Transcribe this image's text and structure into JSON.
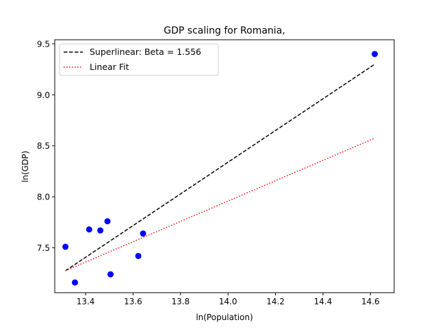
{
  "chart_data": {
    "type": "scatter",
    "title": "GDP scaling for Romania,",
    "xlabel": "ln(Population)",
    "ylabel": "ln(GDP)",
    "xlim": [
      13.27,
      14.7
    ],
    "ylim": [
      7.06,
      9.54
    ],
    "xticks": [
      13.4,
      13.6,
      13.8,
      14.0,
      14.2,
      14.4,
      14.6
    ],
    "xtick_labels": [
      "13.4",
      "13.6",
      "13.8",
      "14.0",
      "14.2",
      "14.4",
      "14.6"
    ],
    "yticks": [
      7.5,
      8.0,
      8.5,
      9.0,
      9.5
    ],
    "ytick_labels": [
      "7.5",
      "8.0",
      "8.5",
      "9.0",
      "9.5"
    ],
    "grid": false,
    "legend_position": "upper-left",
    "points": {
      "color": "#0000ff",
      "x": [
        13.315,
        13.355,
        13.415,
        13.462,
        13.492,
        13.505,
        13.622,
        13.642,
        14.618
      ],
      "y": [
        7.51,
        7.16,
        7.68,
        7.67,
        7.76,
        7.24,
        7.42,
        7.64,
        9.4
      ]
    },
    "lines": [
      {
        "name": "Superlinear: Beta = 1.556",
        "style": "dashed",
        "color": "#000000",
        "x": [
          13.315,
          14.618
        ],
        "y": [
          7.275,
          9.3
        ]
      },
      {
        "name": "Linear Fit",
        "style": "dotted",
        "color": "#ff0000",
        "x": [
          13.315,
          14.618
        ],
        "y": [
          7.275,
          8.575
        ]
      }
    ]
  }
}
